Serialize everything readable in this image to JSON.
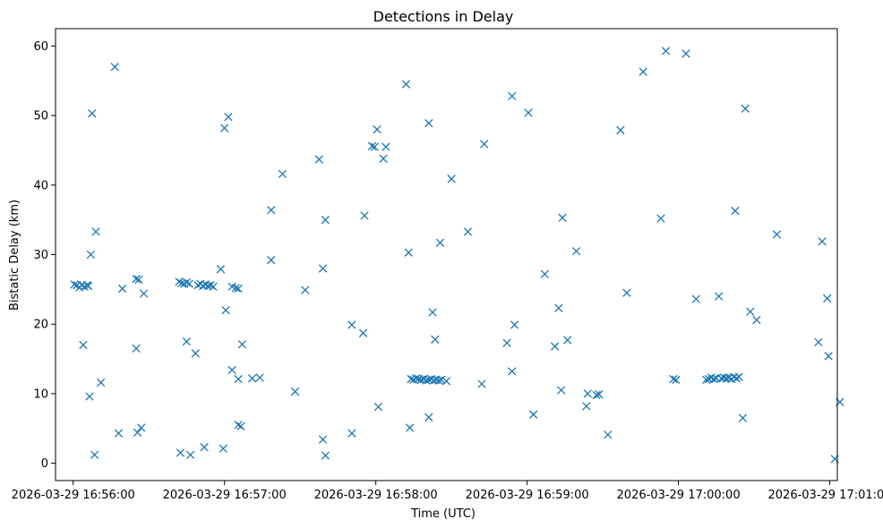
{
  "chart_data": {
    "type": "scatter",
    "title": "Detections in Delay",
    "xlabel": "Time (UTC)",
    "ylabel": "Bistatic Delay (km)",
    "marker": "x",
    "color": "#1f77b4",
    "x_unit": "seconds since 2026-03-29 16:56:00",
    "xlim": [
      -7,
      303
    ],
    "ylim": [
      -2.5,
      62.5
    ],
    "grid": false,
    "x_ticks": [
      {
        "value": 0,
        "label": "2026-03-29 16:56:00"
      },
      {
        "value": 60,
        "label": "2026-03-29 16:57:00"
      },
      {
        "value": 120,
        "label": "2026-03-29 16:58:00"
      },
      {
        "value": 180,
        "label": "2026-03-29 16:59:00"
      },
      {
        "value": 240,
        "label": "2026-03-29 17:00:00"
      },
      {
        "value": 300,
        "label": "2026-03-29 17:01:00"
      }
    ],
    "y_ticks": [
      {
        "value": 0,
        "label": "0"
      },
      {
        "value": 10,
        "label": "10"
      },
      {
        "value": 20,
        "label": "20"
      },
      {
        "value": 30,
        "label": "30"
      },
      {
        "value": 40,
        "label": "40"
      },
      {
        "value": 50,
        "label": "50"
      },
      {
        "value": 60,
        "label": "60"
      }
    ],
    "points": [
      [
        0.5,
        25.7
      ],
      [
        1.5,
        25.6
      ],
      [
        2.5,
        25.3
      ],
      [
        3.5,
        25.6
      ],
      [
        4.5,
        25.4
      ],
      [
        5.5,
        25.6
      ],
      [
        6,
        25.5
      ],
      [
        4,
        17.0
      ],
      [
        6.5,
        9.6
      ],
      [
        7,
        30.0
      ],
      [
        7.5,
        50.3
      ],
      [
        8.5,
        1.2
      ],
      [
        9,
        33.3
      ],
      [
        11,
        11.6
      ],
      [
        16.5,
        57.0
      ],
      [
        18,
        4.3
      ],
      [
        19.5,
        25.1
      ],
      [
        25,
        26.5
      ],
      [
        25,
        16.5
      ],
      [
        25.5,
        4.4
      ],
      [
        26,
        26.4
      ],
      [
        27,
        5.1
      ],
      [
        28,
        24.4
      ],
      [
        42,
        26.1
      ],
      [
        43,
        25.9
      ],
      [
        44,
        25.8
      ],
      [
        45,
        26.0
      ],
      [
        46,
        25.8
      ],
      [
        42.5,
        1.5
      ],
      [
        45,
        17.5
      ],
      [
        46.5,
        1.2
      ],
      [
        48.5,
        15.8
      ],
      [
        49.5,
        25.6
      ],
      [
        50.5,
        25.8
      ],
      [
        51.5,
        25.5
      ],
      [
        52.5,
        25.7
      ],
      [
        53.5,
        25.5
      ],
      [
        54.5,
        25.6
      ],
      [
        55.5,
        25.4
      ],
      [
        52,
        2.3
      ],
      [
        58.5,
        27.9
      ],
      [
        59.5,
        2.1
      ],
      [
        60,
        48.2
      ],
      [
        60.5,
        22.0
      ],
      [
        61.5,
        49.8
      ],
      [
        63,
        25.4
      ],
      [
        63,
        13.4
      ],
      [
        64.5,
        25.2
      ],
      [
        65.5,
        25.1
      ],
      [
        65.5,
        12.1
      ],
      [
        65.5,
        5.5
      ],
      [
        66.5,
        5.3
      ],
      [
        67,
        17.1
      ],
      [
        71,
        12.2
      ],
      [
        74,
        12.3
      ],
      [
        78.5,
        36.4
      ],
      [
        78.5,
        29.2
      ],
      [
        83,
        41.6
      ],
      [
        88,
        10.3
      ],
      [
        92,
        24.9
      ],
      [
        97.5,
        43.7
      ],
      [
        99,
        28.0
      ],
      [
        99,
        3.4
      ],
      [
        100,
        35.0
      ],
      [
        100,
        1.1
      ],
      [
        110.5,
        19.9
      ],
      [
        110.5,
        4.3
      ],
      [
        115,
        18.7
      ],
      [
        115.5,
        35.6
      ],
      [
        118.5,
        45.6
      ],
      [
        119.5,
        45.5
      ],
      [
        120.5,
        48.0
      ],
      [
        121,
        8.1
      ],
      [
        123,
        43.8
      ],
      [
        124,
        45.5
      ],
      [
        132,
        54.5
      ],
      [
        133,
        30.3
      ],
      [
        133.5,
        5.1
      ],
      [
        134,
        12.1
      ],
      [
        135,
        12.0
      ],
      [
        136,
        12.2
      ],
      [
        137,
        12.1
      ],
      [
        138,
        12.0
      ],
      [
        139,
        12.1
      ],
      [
        140,
        11.9
      ],
      [
        141,
        12.0
      ],
      [
        142,
        12.1
      ],
      [
        143,
        11.9
      ],
      [
        144,
        12.0
      ],
      [
        145,
        11.9
      ],
      [
        146,
        12.0
      ],
      [
        141,
        48.9
      ],
      [
        141,
        6.6
      ],
      [
        142.5,
        21.7
      ],
      [
        143.5,
        17.8
      ],
      [
        145.5,
        31.7
      ],
      [
        148,
        11.8
      ],
      [
        150,
        40.9
      ],
      [
        156.5,
        33.3
      ],
      [
        162,
        11.4
      ],
      [
        163,
        45.9
      ],
      [
        172,
        17.3
      ],
      [
        174,
        52.8
      ],
      [
        174,
        13.2
      ],
      [
        175,
        19.9
      ],
      [
        180.5,
        50.4
      ],
      [
        182.5,
        7.0
      ],
      [
        187,
        27.2
      ],
      [
        191,
        16.8
      ],
      [
        192.5,
        22.3
      ],
      [
        193.5,
        10.5
      ],
      [
        194,
        35.3
      ],
      [
        196,
        17.7
      ],
      [
        199.5,
        30.5
      ],
      [
        203.5,
        8.2
      ],
      [
        204,
        10.0
      ],
      [
        207.5,
        9.8
      ],
      [
        208.5,
        9.9
      ],
      [
        212,
        4.1
      ],
      [
        217,
        47.9
      ],
      [
        219.5,
        24.5
      ],
      [
        226,
        56.3
      ],
      [
        233,
        35.2
      ],
      [
        235,
        59.3
      ],
      [
        238,
        12.1
      ],
      [
        239,
        12.0
      ],
      [
        243,
        58.9
      ],
      [
        247,
        23.6
      ],
      [
        251,
        12.0
      ],
      [
        252,
        12.1
      ],
      [
        253,
        12.3
      ],
      [
        254,
        12.1
      ],
      [
        255,
        12.2
      ],
      [
        256,
        24.0
      ],
      [
        257,
        12.2
      ],
      [
        258,
        12.3
      ],
      [
        259,
        12.2
      ],
      [
        260,
        12.3
      ],
      [
        261,
        12.1
      ],
      [
        262,
        12.4
      ],
      [
        263,
        12.2
      ],
      [
        262.5,
        36.3
      ],
      [
        264,
        12.4
      ],
      [
        265.5,
        6.5
      ],
      [
        266.5,
        51.0
      ],
      [
        268.5,
        21.8
      ],
      [
        271,
        20.6
      ],
      [
        279,
        32.9
      ],
      [
        295.5,
        17.4
      ],
      [
        297,
        31.9
      ],
      [
        299,
        23.7
      ],
      [
        299.5,
        15.4
      ],
      [
        302,
        0.6
      ],
      [
        304,
        8.8
      ]
    ]
  }
}
